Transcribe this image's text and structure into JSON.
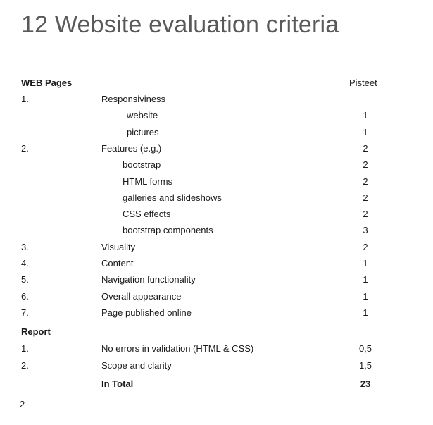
{
  "title": "12 Website evaluation criteria",
  "header": {
    "section": "WEB Pages",
    "points_label": "Pisteet"
  },
  "web_rows": [
    {
      "num": "1.",
      "text": "Responsiviness",
      "points": "",
      "indent": "none"
    },
    {
      "num": "",
      "text": "website",
      "points": "1",
      "indent": "dash"
    },
    {
      "num": "",
      "text": "pictures",
      "points": "1",
      "indent": "dash"
    },
    {
      "num": "2.",
      "text": "Features (e.g.)",
      "points": "2",
      "indent": "none"
    },
    {
      "num": "",
      "text": "bootstrap",
      "points": "2",
      "indent": "sub"
    },
    {
      "num": "",
      "text": "HTML forms",
      "points": "2",
      "indent": "sub"
    },
    {
      "num": "",
      "text": "galleries and slideshows",
      "points": "2",
      "indent": "sub"
    },
    {
      "num": "",
      "text": "CSS effects",
      "points": "2",
      "indent": "sub"
    },
    {
      "num": "",
      "text": "bootstrap components",
      "points": "3",
      "indent": "sub"
    },
    {
      "num": "3.",
      "text": "Visuality",
      "points": "2",
      "indent": "none"
    },
    {
      "num": "4.",
      "text": "Content",
      "points": "1",
      "indent": "none"
    },
    {
      "num": "5.",
      "text": "Navigation functionality",
      "points": "1",
      "indent": "none"
    },
    {
      "num": "6.",
      "text": "Overall appearance",
      "points": "1",
      "indent": "none"
    },
    {
      "num": "7.",
      "text": "Page published online",
      "points": "1",
      "indent": "none"
    }
  ],
  "report": {
    "section": "Report",
    "rows": [
      {
        "num": "1.",
        "text": "No errors in validation (HTML & CSS)",
        "points": "0,5"
      },
      {
        "num": "2.",
        "text": "Scope and clarity",
        "points": "1,5"
      }
    ]
  },
  "total": {
    "label": "In Total",
    "points": "23"
  },
  "page_number": "2",
  "dash_mark": "-"
}
